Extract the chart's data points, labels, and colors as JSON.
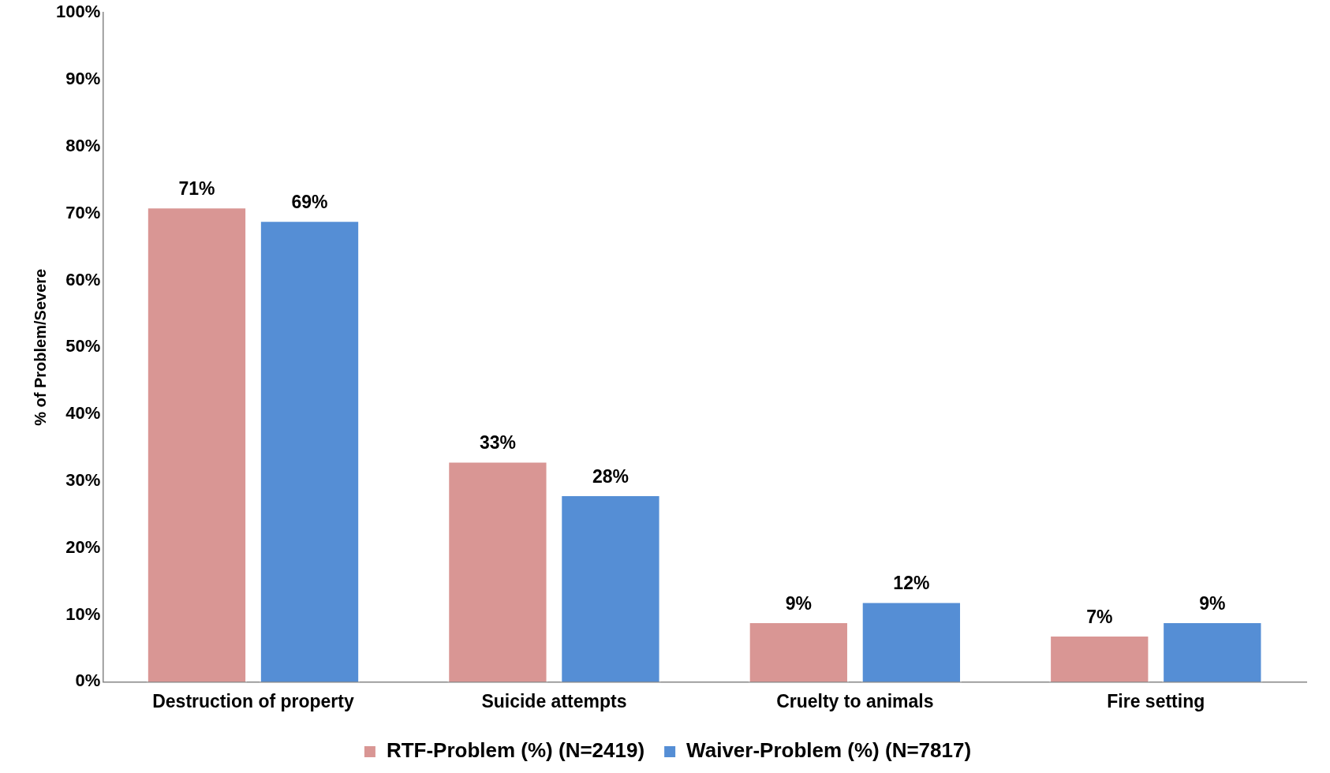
{
  "chart_data": {
    "type": "bar",
    "ylabel": "% of Problem/Severe",
    "categories": [
      "Destruction of property",
      "Suicide attempts",
      "Cruelty to animals",
      "Fire setting"
    ],
    "series": [
      {
        "name": "RTF-Problem (%) (N=2419)",
        "color": "#d99694",
        "values": [
          71,
          33,
          9,
          7
        ],
        "value_labels": [
          "71%",
          "33%",
          "9%",
          "7%"
        ]
      },
      {
        "name": "Waiver-Problem (%) (N=7817)",
        "color": "#558ed5",
        "values": [
          69,
          28,
          12,
          9
        ],
        "value_labels": [
          "69%",
          "28%",
          "12%",
          "9%"
        ]
      }
    ],
    "ylim": [
      0,
      100
    ],
    "yticks": [
      {
        "value": 0,
        "label": "0%"
      },
      {
        "value": 10,
        "label": "10%"
      },
      {
        "value": 20,
        "label": "20%"
      },
      {
        "value": 30,
        "label": "30%"
      },
      {
        "value": 40,
        "label": "40%"
      },
      {
        "value": 50,
        "label": "50%"
      },
      {
        "value": 60,
        "label": "60%"
      },
      {
        "value": 70,
        "label": "70%"
      },
      {
        "value": 80,
        "label": "80%"
      },
      {
        "value": 90,
        "label": "90%"
      },
      {
        "value": 100,
        "label": "100%"
      }
    ],
    "legend": "bottom",
    "grid": false
  }
}
